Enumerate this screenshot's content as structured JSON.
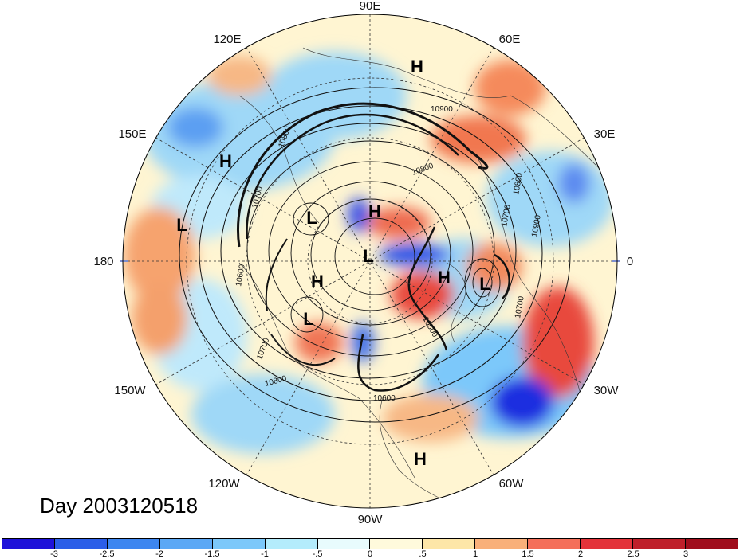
{
  "title": "Day 2003120518",
  "longitude_labels": [
    "90E",
    "60E",
    "30E",
    "0",
    "30W",
    "60W",
    "90W",
    "120W",
    "150W",
    "180",
    "150E",
    "120E"
  ],
  "pressure_systems": [
    {
      "type": "H",
      "label": "H"
    },
    {
      "type": "H",
      "label": "H"
    },
    {
      "type": "L",
      "label": "L"
    },
    {
      "type": "L",
      "label": "L"
    },
    {
      "type": "H",
      "label": "H"
    },
    {
      "type": "L",
      "label": "L"
    },
    {
      "type": "H",
      "label": "H"
    },
    {
      "type": "H",
      "label": "H"
    },
    {
      "type": "L",
      "label": "L"
    },
    {
      "type": "L",
      "label": "L"
    },
    {
      "type": "H",
      "label": "H"
    }
  ],
  "contour_labels": [
    "10900",
    "10900",
    "10800",
    "10700",
    "10800",
    "10700",
    "10600",
    "10500",
    "10700",
    "10800",
    "10700",
    "10800",
    "10600"
  ],
  "colorbar": {
    "ticks": [
      "-3",
      "-2.5",
      "-2",
      "-1.5",
      "-1",
      "-.5",
      "0",
      ".5",
      "1",
      "1.5",
      "2",
      "2.5",
      "3"
    ],
    "colors": [
      "#1e12d9",
      "#2b5ee8",
      "#3d86f0",
      "#5ba8f5",
      "#7cc8fa",
      "#b4ecfc",
      "#e8fbfd",
      "#fffadc",
      "#fde6a8",
      "#f9b07a",
      "#f46f5a",
      "#e3333a",
      "#bf1f2a",
      "#a00d1c"
    ]
  }
}
